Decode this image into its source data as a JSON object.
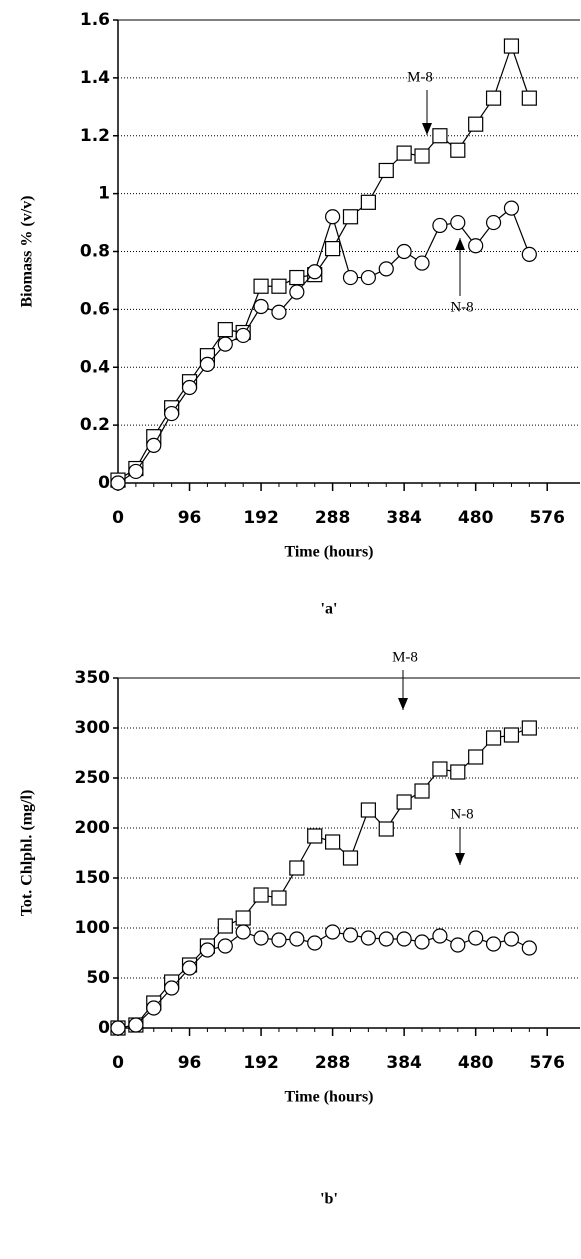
{
  "chart_data": [
    {
      "type": "line",
      "xlabel": "Time (hours)",
      "ylabel": "Biomass % (v/v)",
      "caption": "'a'",
      "xlim": [
        0,
        620
      ],
      "ylim": [
        0,
        1.6
      ],
      "xticks": [
        0,
        96,
        192,
        288,
        384,
        480,
        576
      ],
      "yticks": [
        0,
        0.2,
        0.4,
        0.6,
        0.8,
        1,
        1.2,
        1.4,
        1.6
      ],
      "grid": true,
      "x": [
        0,
        24,
        48,
        72,
        96,
        120,
        144,
        168,
        192,
        216,
        240,
        264,
        288,
        312,
        336,
        360,
        384,
        408,
        432,
        456,
        480,
        504,
        528,
        552
      ],
      "series": [
        {
          "name": "M-8",
          "color": "#000000",
          "marker": "square",
          "values": [
            0.01,
            0.05,
            0.16,
            0.26,
            0.35,
            0.44,
            0.53,
            0.52,
            0.68,
            0.68,
            0.71,
            0.72,
            0.81,
            0.92,
            0.97,
            1.08,
            1.14,
            1.13,
            1.2,
            1.15,
            1.24,
            1.33,
            1.51,
            1.33
          ]
        },
        {
          "name": "N-8",
          "color": "#000000",
          "marker": "circle",
          "values": [
            0,
            0.04,
            0.13,
            0.24,
            0.33,
            0.41,
            0.48,
            0.51,
            0.61,
            0.59,
            0.66,
            0.73,
            0.92,
            0.71,
            0.71,
            0.74,
            0.8,
            0.76,
            0.89,
            0.9,
            0.82,
            0.9,
            0.95,
            0.79
          ]
        }
      ]
    },
    {
      "type": "line",
      "xlabel": "Time (hours)",
      "ylabel": "Tot. Chlphl. (mg/l)",
      "caption": "'b'",
      "xlim": [
        0,
        620
      ],
      "ylim": [
        0,
        350
      ],
      "xticks": [
        0,
        96,
        192,
        288,
        384,
        480,
        576
      ],
      "yticks": [
        0,
        50,
        100,
        150,
        200,
        250,
        300,
        350
      ],
      "grid": true,
      "x": [
        0,
        24,
        48,
        72,
        96,
        120,
        144,
        168,
        192,
        216,
        240,
        264,
        288,
        312,
        336,
        360,
        384,
        408,
        432,
        456,
        480,
        504,
        528,
        552
      ],
      "series": [
        {
          "name": "M-8",
          "color": "#000000",
          "marker": "square",
          "values": [
            0,
            3,
            25,
            46,
            63,
            82,
            102,
            110,
            133,
            130,
            160,
            192,
            186,
            170,
            218,
            199,
            226,
            237,
            259,
            256,
            271,
            290,
            293,
            300
          ]
        },
        {
          "name": "N-8",
          "color": "#000000",
          "marker": "circle",
          "values": [
            0,
            3,
            20,
            40,
            60,
            78,
            82,
            96,
            90,
            88,
            89,
            85,
            96,
            93,
            90,
            89,
            89,
            86,
            92,
            83,
            90,
            84,
            89,
            80
          ]
        }
      ]
    }
  ]
}
